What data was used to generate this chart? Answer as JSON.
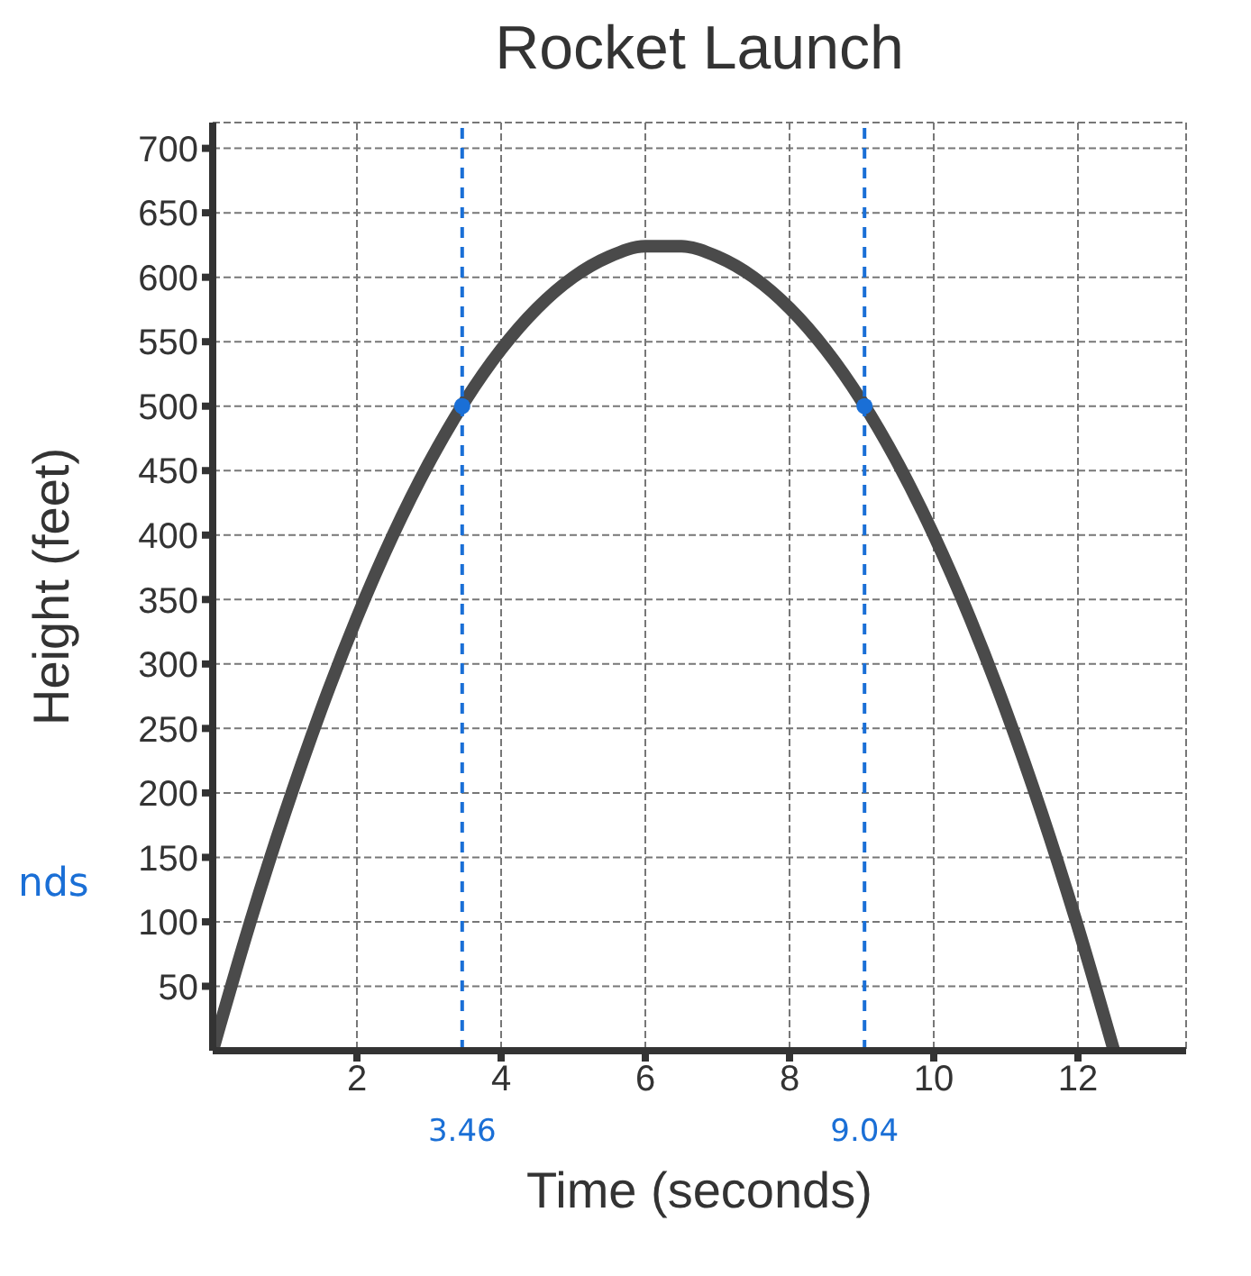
{
  "chart_data": {
    "type": "line",
    "title": "Rocket Launch",
    "xlabel": "Time (seconds)",
    "ylabel": "Height (feet)",
    "series": [
      {
        "color": "#4a4a4a",
        "marker": "none",
        "x": [
          0,
          0.5,
          1,
          1.5,
          2,
          2.5,
          3,
          3.5,
          4,
          4.5,
          5,
          5.5,
          6,
          6.5,
          7,
          7.5,
          8,
          8.5,
          9,
          9.5,
          10,
          10.5,
          11,
          11.5,
          12,
          12.5
        ],
        "values": [
          0,
          96,
          184,
          264,
          336,
          400,
          456,
          504,
          544,
          576,
          600,
          616,
          624,
          624,
          616,
          600,
          576,
          544,
          504,
          456,
          400,
          336,
          264,
          184,
          96,
          0
        ]
      },
      {
        "type": "scatter",
        "color": "#1a6fd6",
        "marker": "circle",
        "x": [
          3.46,
          9.04
        ],
        "values": [
          500,
          500
        ]
      }
    ],
    "xlim": [
      0,
      13.5
    ],
    "xticks": [
      2,
      4,
      6,
      8,
      10,
      12
    ],
    "ylim": [
      0,
      720
    ],
    "yticks": [
      50,
      100,
      150,
      200,
      250,
      300,
      350,
      400,
      450,
      500,
      550,
      600,
      650,
      700
    ],
    "ref_lines": [
      {
        "axis": "x",
        "value": 3.46,
        "label": "3.46",
        "color": "#1a6fd6",
        "line_style": "dashed"
      },
      {
        "axis": "x",
        "value": 9.04,
        "label": "9.04",
        "color": "#1a6fd6",
        "line_style": "dashed"
      }
    ],
    "annotations": [
      "nds"
    ],
    "grid": true
  }
}
